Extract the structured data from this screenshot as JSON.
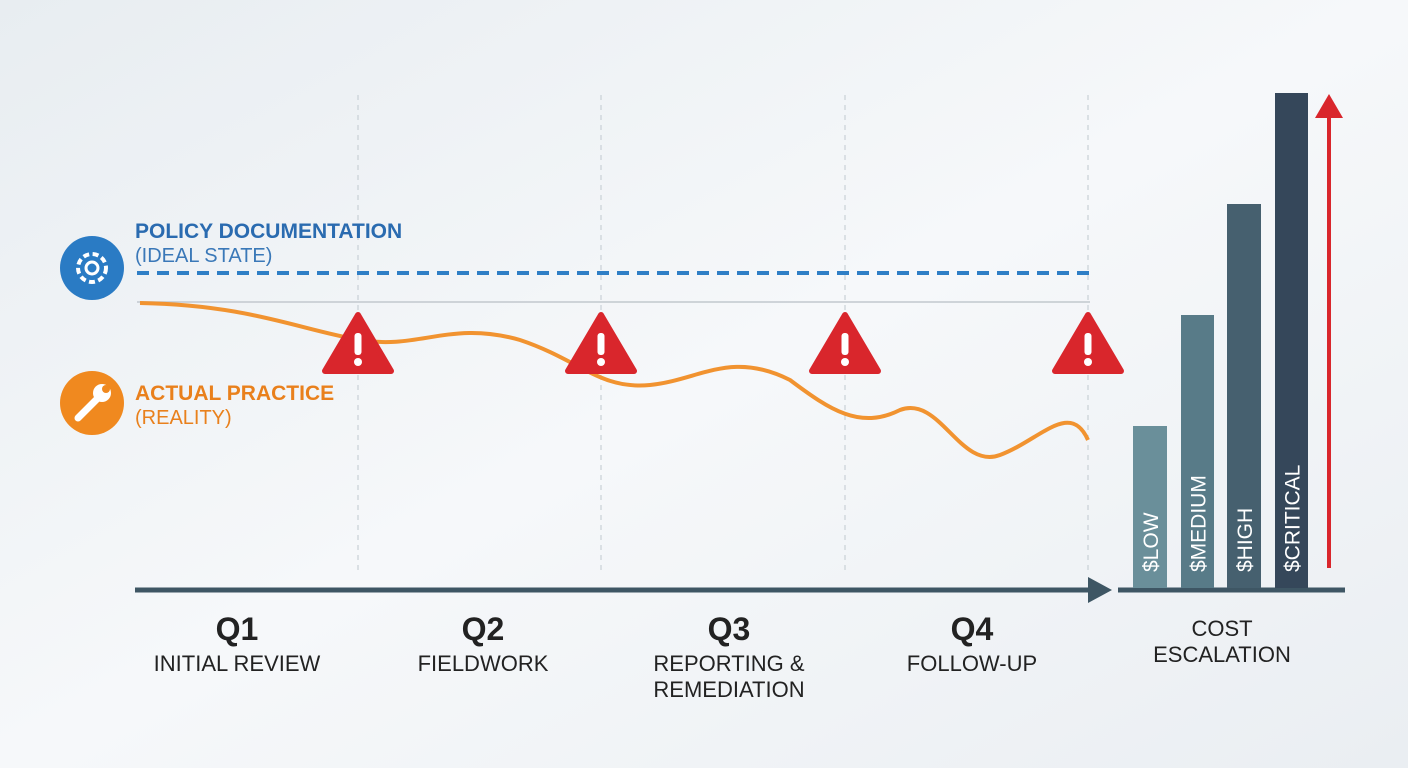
{
  "legend": {
    "policy": {
      "title": "POLICY DOCUMENTATION",
      "subtitle": "(IDEAL STATE)"
    },
    "actual": {
      "title": "ACTUAL PRACTICE",
      "subtitle": "(REALITY)"
    }
  },
  "quarters": [
    {
      "label": "Q1",
      "name": [
        "INITIAL REVIEW"
      ]
    },
    {
      "label": "Q2",
      "name": [
        "FIELDWORK"
      ]
    },
    {
      "label": "Q3",
      "name": [
        "REPORTING &",
        "REMEDIATION"
      ]
    },
    {
      "label": "Q4",
      "name": [
        "FOLLOW-UP"
      ]
    }
  ],
  "cost": {
    "title": [
      "COST",
      "ESCALATION"
    ],
    "bars": [
      "$LOW",
      "$MEDIUM",
      "$HIGH",
      "$CRITICAL"
    ]
  }
}
